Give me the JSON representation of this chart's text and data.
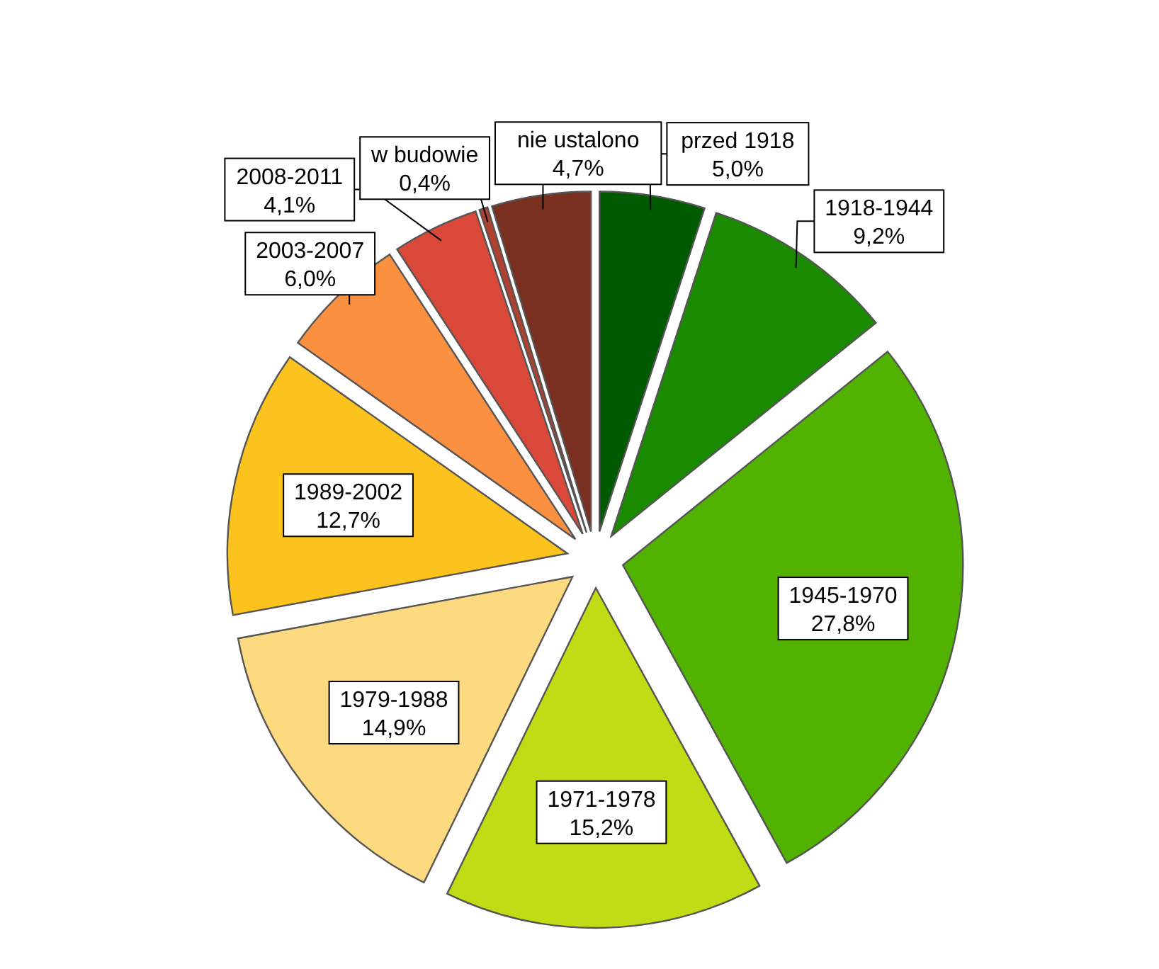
{
  "chart_data": {
    "type": "pie",
    "categories": [
      "przed 1918",
      "1918-1944",
      "1945-1970",
      "1971-1978",
      "1979-1988",
      "1989-2002",
      "2003-2007",
      "2008-2011",
      "w budowie",
      "nie ustalono"
    ],
    "values": [
      5.0,
      9.2,
      27.8,
      15.2,
      14.9,
      12.7,
      6.0,
      4.1,
      0.4,
      4.7
    ],
    "value_labels": [
      "5,0%",
      "9,2%",
      "27,8%",
      "15,2%",
      "14,9%",
      "12,7%",
      "6,0%",
      "4,1%",
      "0,4%",
      "4,7%"
    ],
    "colors": [
      "#005a00",
      "#1a8a00",
      "#52b200",
      "#c0dc14",
      "#fdd980",
      "#fcc21e",
      "#fb9040",
      "#d94838",
      "#b04030",
      "#7a3020"
    ]
  }
}
